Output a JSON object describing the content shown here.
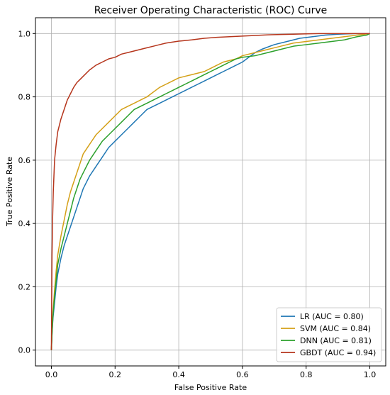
{
  "chart_data": {
    "type": "line",
    "title": "Receiver Operating Characteristic (ROC) Curve",
    "xlabel": "False Positive Rate",
    "ylabel": "True Positive Rate",
    "xlim": [
      -0.05,
      1.05
    ],
    "ylim": [
      -0.05,
      1.05
    ],
    "xticks": [
      0.0,
      0.2,
      0.4,
      0.6,
      0.8,
      1.0
    ],
    "yticks": [
      0.0,
      0.2,
      0.4,
      0.6,
      0.8,
      1.0
    ],
    "xtick_labels": [
      "0.0",
      "0.2",
      "0.4",
      "0.6",
      "0.8",
      "1.0"
    ],
    "ytick_labels": [
      "0.0",
      "0.2",
      "0.4",
      "0.6",
      "0.8",
      "1.0"
    ],
    "grid": true,
    "legend_position": "lower-right",
    "series": [
      {
        "name": "LR (AUC = 0.80)",
        "color": "#1f77b4",
        "x": [
          0,
          0.002,
          0.005,
          0.01,
          0.015,
          0.02,
          0.03,
          0.04,
          0.05,
          0.06,
          0.07,
          0.08,
          0.09,
          0.1,
          0.12,
          0.14,
          0.16,
          0.18,
          0.2,
          0.22,
          0.24,
          0.26,
          0.28,
          0.3,
          0.32,
          0.34,
          0.36,
          0.38,
          0.4,
          0.42,
          0.44,
          0.46,
          0.48,
          0.5,
          0.52,
          0.54,
          0.56,
          0.58,
          0.6,
          0.62,
          0.64,
          0.66,
          0.7,
          0.74,
          0.78,
          0.82,
          0.86,
          0.9,
          0.95,
          1.0
        ],
        "y": [
          0,
          0.05,
          0.1,
          0.15,
          0.2,
          0.24,
          0.29,
          0.33,
          0.36,
          0.39,
          0.42,
          0.45,
          0.48,
          0.51,
          0.55,
          0.58,
          0.61,
          0.64,
          0.66,
          0.68,
          0.7,
          0.72,
          0.74,
          0.76,
          0.77,
          0.78,
          0.79,
          0.8,
          0.81,
          0.82,
          0.83,
          0.84,
          0.85,
          0.86,
          0.87,
          0.88,
          0.89,
          0.9,
          0.91,
          0.925,
          0.94,
          0.95,
          0.965,
          0.975,
          0.985,
          0.99,
          0.995,
          0.998,
          1.0,
          1.0
        ]
      },
      {
        "name": "SVM (AUC = 0.84)",
        "color": "#d4a017",
        "x": [
          0,
          0.002,
          0.005,
          0.01,
          0.015,
          0.02,
          0.03,
          0.04,
          0.05,
          0.06,
          0.07,
          0.08,
          0.09,
          0.1,
          0.12,
          0.14,
          0.16,
          0.18,
          0.2,
          0.22,
          0.24,
          0.26,
          0.28,
          0.3,
          0.32,
          0.34,
          0.36,
          0.38,
          0.4,
          0.42,
          0.44,
          0.46,
          0.48,
          0.5,
          0.52,
          0.54,
          0.56,
          0.58,
          0.6,
          0.64,
          0.68,
          0.72,
          0.76,
          0.8,
          0.84,
          0.88,
          0.92,
          0.96,
          1.0
        ],
        "y": [
          0,
          0.06,
          0.12,
          0.19,
          0.25,
          0.3,
          0.36,
          0.41,
          0.46,
          0.5,
          0.53,
          0.56,
          0.59,
          0.62,
          0.65,
          0.68,
          0.7,
          0.72,
          0.74,
          0.76,
          0.77,
          0.78,
          0.79,
          0.8,
          0.815,
          0.83,
          0.84,
          0.85,
          0.86,
          0.865,
          0.87,
          0.875,
          0.88,
          0.89,
          0.9,
          0.91,
          0.915,
          0.92,
          0.93,
          0.94,
          0.95,
          0.96,
          0.97,
          0.975,
          0.98,
          0.985,
          0.99,
          0.995,
          1.0
        ]
      },
      {
        "name": "DNN (AUC = 0.81)",
        "color": "#2ca02c",
        "x": [
          0,
          0.002,
          0.005,
          0.01,
          0.015,
          0.02,
          0.03,
          0.04,
          0.05,
          0.06,
          0.07,
          0.08,
          0.09,
          0.1,
          0.12,
          0.14,
          0.16,
          0.18,
          0.2,
          0.22,
          0.24,
          0.26,
          0.28,
          0.3,
          0.32,
          0.34,
          0.36,
          0.38,
          0.4,
          0.42,
          0.44,
          0.46,
          0.48,
          0.5,
          0.52,
          0.54,
          0.56,
          0.58,
          0.6,
          0.64,
          0.68,
          0.72,
          0.76,
          0.8,
          0.84,
          0.88,
          0.92,
          0.96,
          0.99,
          1.0
        ],
        "y": [
          0,
          0.05,
          0.11,
          0.17,
          0.22,
          0.27,
          0.32,
          0.36,
          0.4,
          0.44,
          0.48,
          0.51,
          0.54,
          0.56,
          0.6,
          0.63,
          0.66,
          0.68,
          0.7,
          0.72,
          0.74,
          0.76,
          0.77,
          0.78,
          0.79,
          0.8,
          0.81,
          0.82,
          0.83,
          0.84,
          0.85,
          0.86,
          0.87,
          0.88,
          0.89,
          0.9,
          0.91,
          0.92,
          0.925,
          0.93,
          0.94,
          0.95,
          0.96,
          0.965,
          0.97,
          0.975,
          0.98,
          0.99,
          0.995,
          1.0
        ]
      },
      {
        "name": "GBDT (AUC = 0.94)",
        "color": "#b5351c",
        "x": [
          0,
          0.002,
          0.004,
          0.006,
          0.008,
          0.01,
          0.015,
          0.02,
          0.025,
          0.03,
          0.04,
          0.05,
          0.06,
          0.07,
          0.08,
          0.09,
          0.1,
          0.12,
          0.14,
          0.16,
          0.18,
          0.2,
          0.22,
          0.24,
          0.26,
          0.28,
          0.3,
          0.32,
          0.34,
          0.36,
          0.38,
          0.4,
          0.44,
          0.48,
          0.52,
          0.56,
          0.6,
          0.64,
          0.68,
          0.72,
          0.76,
          0.8,
          0.84,
          0.88,
          0.92,
          0.96,
          1.0
        ],
        "y": [
          0,
          0.3,
          0.42,
          0.5,
          0.55,
          0.6,
          0.65,
          0.69,
          0.71,
          0.73,
          0.76,
          0.79,
          0.81,
          0.83,
          0.845,
          0.855,
          0.865,
          0.885,
          0.9,
          0.91,
          0.92,
          0.925,
          0.935,
          0.94,
          0.945,
          0.95,
          0.955,
          0.96,
          0.965,
          0.97,
          0.973,
          0.976,
          0.98,
          0.985,
          0.988,
          0.99,
          0.992,
          0.994,
          0.996,
          0.997,
          0.998,
          0.999,
          1.0,
          1.0,
          1.0,
          1.0,
          1.0
        ]
      }
    ]
  }
}
